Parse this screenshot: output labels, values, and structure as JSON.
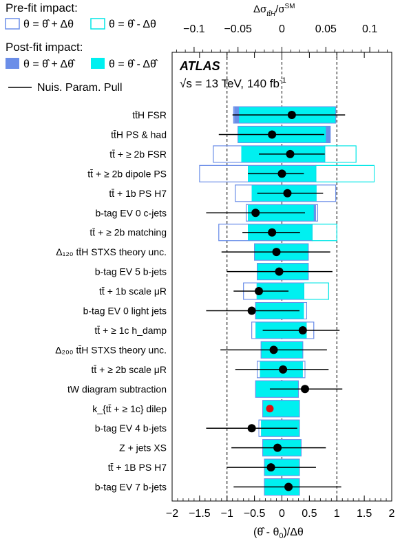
{
  "legend": {
    "prefit_title": "Pre-fit impact:",
    "prefit_up": "θ = θ̂ + Δθ",
    "prefit_down": "θ = θ̂ - Δθ",
    "postfit_title": "Post-fit impact:",
    "postfit_up": "θ = θ̂ + Δθ̂",
    "postfit_down": "θ = θ̂ - Δθ̂",
    "pull": "Nuis. Param. Pull",
    "colors": {
      "prefit_up_edge": "#6b8ee8",
      "prefit_down_edge": "#00e6e6",
      "postfit_up_fill": "#6b8ee8",
      "postfit_down_fill": "#00f0f0",
      "pull": "#000000",
      "pull_highlight": "#e01010"
    }
  },
  "annotation": {
    "experiment": "ATLAS",
    "energy": "√s = 13 TeV, 140 fb",
    "lumi_sup": "-1"
  },
  "chart_data": {
    "type": "ranking",
    "xlabel": "(θ̂ - θ₀)/Δθ",
    "top_xlabel": "Δσ_{tt̄H}/σ^{SM}",
    "xlim": [
      -2,
      2
    ],
    "xticks": [
      "−2",
      "−1.5",
      "−1",
      "−0.5",
      "0",
      "0.5",
      "1",
      "1.5",
      "2"
    ],
    "top_xlim": [
      -0.125,
      0.125
    ],
    "top_xticks": [
      "−0.1",
      "−0.05",
      "0",
      "0.05",
      "0.1"
    ],
    "dashed_lines": [
      -1,
      0,
      1
    ],
    "parameters": [
      {
        "label": "tt̄H FSR",
        "pull": 0.18,
        "pull_err": [
          -0.9,
          1.15
        ],
        "pre_up": [
          -0.88,
          0.98
        ],
        "pre_down": null,
        "post_up": [
          -0.87,
          0.98
        ],
        "post_down": [
          -0.78,
          0.98
        ]
      },
      {
        "label": "tt̄H PS & had",
        "pull": -0.18,
        "pull_err": [
          -1.15,
          0.77
        ],
        "pre_up": [
          -0.8,
          0.88
        ],
        "pre_down": null,
        "post_up": [
          -0.8,
          0.88
        ],
        "post_down": [
          -0.8,
          0.8
        ]
      },
      {
        "label": "tt̄ + ≥ 2b FSR",
        "pull": 0.15,
        "pull_err": [
          -0.42,
          0.78
        ],
        "pre_up": [
          -1.25,
          0.78
        ],
        "pre_down": [
          0.78,
          1.35
        ],
        "post_up": [
          -0.74,
          0.78
        ],
        "post_down": [
          -0.74,
          0.78
        ]
      },
      {
        "label": "tt̄ + ≥ 2b dipole PS",
        "pull": 0.0,
        "pull_err": [
          -0.62,
          0.4
        ],
        "pre_up": [
          -1.5,
          0.62
        ],
        "pre_down": [
          0.62,
          1.68
        ],
        "post_up": [
          -0.62,
          0.62
        ],
        "post_down": [
          -0.62,
          0.62
        ]
      },
      {
        "label": "tt̄ + 1b PS H7",
        "pull": 0.1,
        "pull_err": [
          -0.45,
          0.75
        ],
        "pre_up": [
          -0.85,
          0.98
        ],
        "pre_down": null,
        "post_up": [
          -0.55,
          0.63
        ],
        "post_down": [
          -0.55,
          0.63
        ]
      },
      {
        "label": "b-tag EV 0 c-jets",
        "pull": -0.48,
        "pull_err": [
          -1.38,
          0.42
        ],
        "pre_up": [
          -0.65,
          0.65
        ],
        "pre_down": null,
        "post_up": [
          -0.62,
          0.62
        ],
        "post_down": [
          -0.62,
          0.58
        ]
      },
      {
        "label": "tt̄ + ≥ 2b matching",
        "pull": -0.18,
        "pull_err": [
          -0.72,
          0.33
        ],
        "pre_up": [
          -1.15,
          0.55
        ],
        "pre_down": [
          0.55,
          1.0
        ],
        "post_up": [
          -0.62,
          0.55
        ],
        "post_down": [
          -0.62,
          0.55
        ]
      },
      {
        "label": "Δ₁₂₀ tt̄H STXS theory unc.",
        "pull": -0.1,
        "pull_err": [
          -1.1,
          0.88
        ],
        "pre_up": [
          -0.5,
          0.48
        ],
        "pre_down": null,
        "post_up": [
          -0.5,
          0.48
        ],
        "post_down": [
          -0.5,
          0.48
        ]
      },
      {
        "label": "b-tag EV 5 b-jets",
        "pull": -0.05,
        "pull_err": [
          -1.0,
          0.92
        ],
        "pre_up": [
          -0.45,
          0.48
        ],
        "pre_down": null,
        "post_up": [
          -0.45,
          0.48
        ],
        "post_down": [
          -0.45,
          0.48
        ]
      },
      {
        "label": "tt̄ + 1b scale μR",
        "pull": -0.42,
        "pull_err": [
          -0.88,
          0.12
        ],
        "pre_up": [
          -0.7,
          0.4
        ],
        "pre_down": [
          0.4,
          0.85
        ],
        "post_up": [
          -0.46,
          0.4
        ],
        "post_down": [
          -0.46,
          0.4
        ]
      },
      {
        "label": "b-tag EV 0 light jets",
        "pull": -0.55,
        "pull_err": [
          -1.38,
          0.32
        ],
        "pre_up": [
          -0.48,
          0.45
        ],
        "pre_down": null,
        "post_up": [
          -0.48,
          0.4
        ],
        "post_down": [
          -0.48,
          0.4
        ]
      },
      {
        "label": "tt̄ + ≥ 1c h_damp",
        "pull": 0.38,
        "pull_err": [
          -0.35,
          1.05
        ],
        "pre_up": [
          -0.55,
          0.58
        ],
        "pre_down": null,
        "post_up": [
          -0.48,
          0.45
        ],
        "post_down": [
          -0.48,
          0.45
        ]
      },
      {
        "label": "Δ₂₀₀ tt̄H STXS theory unc.",
        "pull": -0.15,
        "pull_err": [
          -1.12,
          0.82
        ],
        "pre_up": [
          -0.38,
          0.38
        ],
        "pre_down": null,
        "post_up": [
          -0.38,
          0.38
        ],
        "post_down": [
          -0.38,
          0.38
        ]
      },
      {
        "label": "tt̄ + ≥ 2b scale μR",
        "pull": 0.02,
        "pull_err": [
          -0.85,
          0.85
        ],
        "pre_up": [
          -0.45,
          0.42
        ],
        "pre_down": null,
        "post_up": [
          -0.4,
          0.38
        ],
        "post_down": [
          -0.4,
          0.38
        ]
      },
      {
        "label": "tW diagram subtraction",
        "pull": 0.42,
        "pull_err": [
          -0.22,
          1.1
        ],
        "pre_up": [
          -0.48,
          0.3
        ],
        "pre_down": null,
        "post_up": [
          -0.35,
          0.3
        ],
        "post_down": [
          -0.48,
          0.3
        ]
      },
      {
        "label": "k_{tt̄ + ≥ 1c} dilep",
        "pull": -0.22,
        "pull_err": [
          -0.28,
          -0.16
        ],
        "pre_up": [
          -0.35,
          0.32
        ],
        "pre_down": null,
        "post_up": [
          -0.35,
          0.32
        ],
        "post_down": [
          -0.35,
          0.32
        ],
        "highlight": true
      },
      {
        "label": "b-tag EV 4 b-jets",
        "pull": -0.55,
        "pull_err": [
          -1.38,
          0.28
        ],
        "pre_up": [
          -0.42,
          0.32
        ],
        "pre_down": null,
        "post_up": [
          -0.38,
          0.32
        ],
        "post_down": [
          -0.38,
          0.32
        ]
      },
      {
        "label": "Z + jets XS",
        "pull": -0.08,
        "pull_err": [
          -0.92,
          0.8
        ],
        "pre_up": [
          -0.35,
          0.35
        ],
        "pre_down": null,
        "post_up": [
          -0.35,
          0.35
        ],
        "post_down": [
          -0.35,
          0.35
        ]
      },
      {
        "label": "tt̄ + 1B PS H7",
        "pull": -0.2,
        "pull_err": [
          -1.0,
          0.62
        ],
        "pre_up": [
          -0.32,
          0.32
        ],
        "pre_down": null,
        "post_up": [
          -0.32,
          0.32
        ],
        "post_down": [
          -0.32,
          0.32
        ]
      },
      {
        "label": "b-tag EV 7 b-jets",
        "pull": 0.12,
        "pull_err": [
          -0.88,
          1.08
        ],
        "pre_up": [
          -0.32,
          0.32
        ],
        "pre_down": null,
        "post_up": [
          -0.32,
          0.32
        ],
        "post_down": [
          -0.32,
          0.32
        ]
      }
    ]
  }
}
